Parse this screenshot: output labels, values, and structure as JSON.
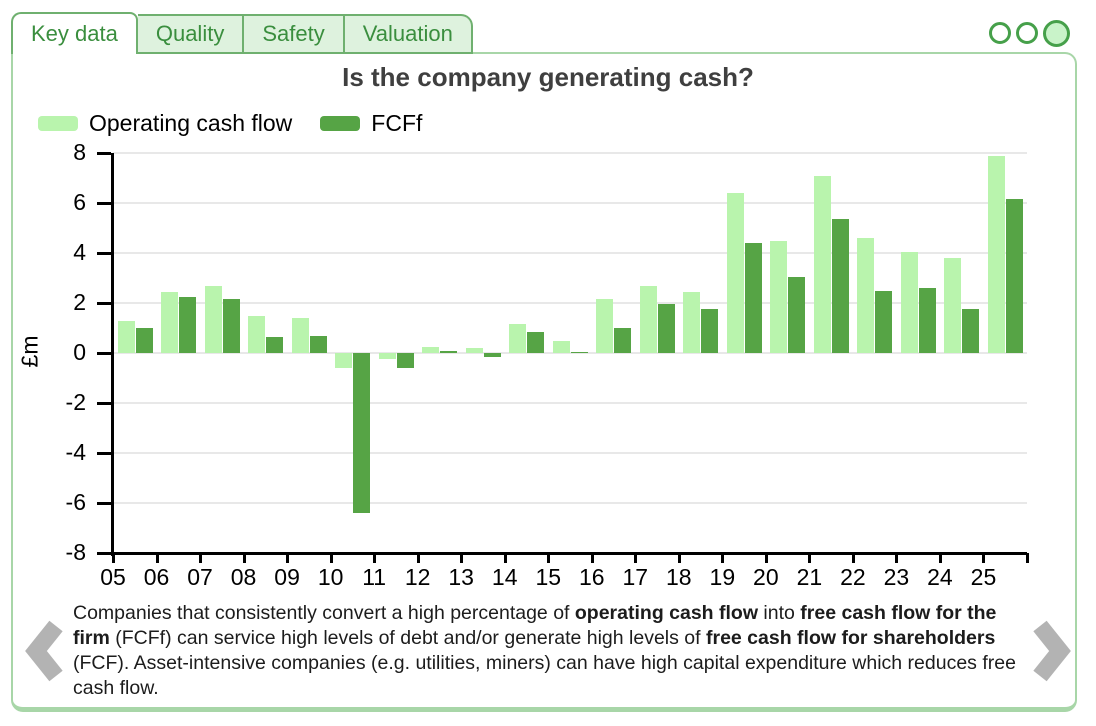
{
  "tabs": [
    {
      "label": "Key data",
      "active": true
    },
    {
      "label": "Quality",
      "active": false
    },
    {
      "label": "Safety",
      "active": false
    },
    {
      "label": "Valuation",
      "active": false
    }
  ],
  "pagination": {
    "dots": [
      {
        "active": false
      },
      {
        "active": false
      },
      {
        "active": true
      }
    ]
  },
  "chart_data": {
    "type": "bar",
    "title": "Is the company generating cash?",
    "ylabel": "£m",
    "ylim": [
      -8,
      8
    ],
    "ytick_step": 2,
    "grid": true,
    "legend_position": "top-left",
    "categories": [
      "05",
      "06",
      "07",
      "08",
      "09",
      "10",
      "11",
      "12",
      "13",
      "14",
      "15",
      "16",
      "17",
      "18",
      "19",
      "20",
      "21",
      "22",
      "23",
      "24",
      "25"
    ],
    "series": [
      {
        "name": "Operating cash flow",
        "color": "#b9f4ad",
        "values": [
          1.3,
          2.45,
          2.7,
          1.5,
          1.4,
          -0.6,
          -0.25,
          0.25,
          0.2,
          1.15,
          0.5,
          2.15,
          2.7,
          2.45,
          6.4,
          4.5,
          7.1,
          4.6,
          4.05,
          3.8,
          7.9
        ]
      },
      {
        "name": "FCFf",
        "color": "#56a445",
        "values": [
          1.0,
          2.25,
          2.15,
          0.65,
          0.7,
          -6.4,
          -0.6,
          0.1,
          -0.15,
          0.85,
          0.05,
          1.0,
          1.95,
          1.75,
          4.4,
          3.05,
          5.35,
          2.5,
          2.6,
          1.75,
          6.15
        ]
      }
    ]
  },
  "caption": {
    "segments": [
      {
        "text": "Companies that consistently convert a high percentage of ",
        "bold": false
      },
      {
        "text": "operating cash flow",
        "bold": true
      },
      {
        "text": " into ",
        "bold": false
      },
      {
        "text": "free cash flow for the firm",
        "bold": true
      },
      {
        "text": " (FCFf) can service high levels of debt and/or generate high levels of ",
        "bold": false
      },
      {
        "text": "free cash flow for shareholders",
        "bold": true
      },
      {
        "text": " (FCF). Asset-intensive companies (e.g. utilities, miners) can have high capital expenditure which reduces free cash flow.",
        "bold": false
      }
    ]
  },
  "colors": {
    "tab_text_green": "#3a8e3e",
    "tab_background": "#def2de",
    "tab_border": "#6fb06f",
    "widget_border": "#a8d6a8",
    "dot_stroke": "#46a04a",
    "dot_fill_active": "#c9f3c9",
    "bar_light": "#b9f4ad",
    "bar_dark": "#56a445",
    "gridline": "#e8e8e8",
    "arrow_gray": "#b3b3b3"
  }
}
